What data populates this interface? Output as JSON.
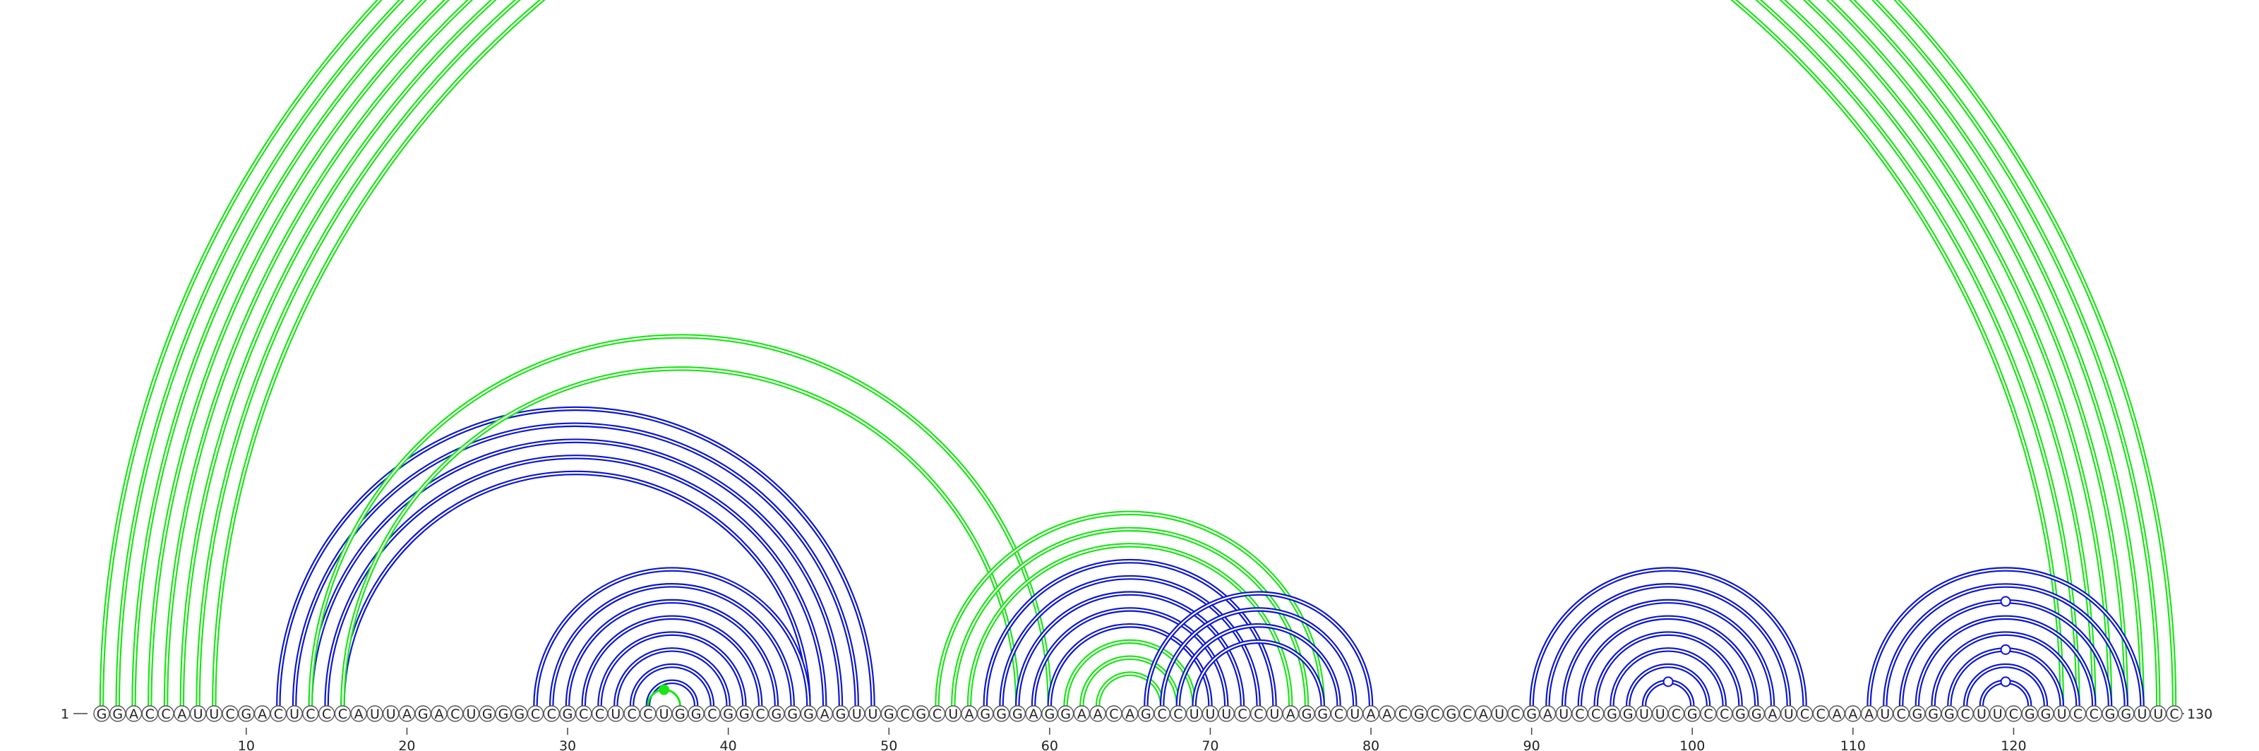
{
  "sequence": "GGACCAUUCGACUCCCAUUAGACUGGGCCGCCUCCUGGCGGCGGGAGUUGCGCUAGGGAGGAACAGCCUUUCCUAGGCUAACGCGCAUCGAUCCGGUUCGCCGGAUCCAAAUCGGGCUUCGGUCCGGUUC",
  "start_label": "1",
  "end_label": "130",
  "tick_labels": [
    "10",
    "20",
    "30",
    "40",
    "50",
    "60",
    "70",
    "80",
    "90",
    "100",
    "110",
    "120"
  ],
  "colors": {
    "primary": "#0a14d2",
    "secondary": "#18e614"
  },
  "arc_groups": [
    {
      "name": "pseudoknot-outer",
      "color": "#18e614",
      "pairs": [
        [
          1,
          130
        ],
        [
          2,
          129
        ],
        [
          3,
          128
        ],
        [
          4,
          127
        ],
        [
          5,
          126
        ],
        [
          6,
          125
        ],
        [
          7,
          124
        ],
        [
          8,
          123
        ]
      ],
      "style": "double"
    },
    {
      "name": "helix-12-49",
      "color": "#0a14d2",
      "pairs": [
        [
          12,
          49
        ],
        [
          13,
          48
        ],
        [
          14,
          47
        ],
        [
          15,
          46
        ],
        [
          16,
          45
        ]
      ],
      "style": "double"
    },
    {
      "name": "pseudoknot-16-60",
      "color": "#18e614",
      "pairs": [
        [
          14,
          60
        ],
        [
          16,
          58
        ]
      ],
      "style": "double"
    },
    {
      "name": "helix-28-45",
      "color": "#0a14d2",
      "pairs": [
        [
          28,
          45
        ],
        [
          29,
          44
        ],
        [
          30,
          43
        ],
        [
          31,
          42
        ],
        [
          32,
          41
        ],
        [
          33,
          40
        ],
        [
          34,
          39
        ],
        [
          35,
          38
        ]
      ],
      "style": "double"
    },
    {
      "name": "loop-35-37",
      "color": "#18e614",
      "pairs": [
        [
          35,
          37
        ]
      ],
      "style": "single"
    },
    {
      "name": "pseudoknot-53-77",
      "color": "#18e614",
      "pairs": [
        [
          53,
          77
        ],
        [
          54,
          76
        ],
        [
          55,
          75
        ]
      ],
      "style": "double"
    },
    {
      "name": "helix-56-74",
      "color": "#0a14d2",
      "pairs": [
        [
          56,
          74
        ],
        [
          57,
          73
        ],
        [
          58,
          72
        ],
        [
          59,
          71
        ],
        [
          60,
          70
        ]
      ],
      "style": "double"
    },
    {
      "name": "helix-61-70-inner",
      "color": "#18e614",
      "pairs": [
        [
          61,
          69
        ],
        [
          62,
          68
        ],
        [
          63,
          67
        ]
      ],
      "style": "double"
    },
    {
      "name": "helix-66-80",
      "color": "#0a14d2",
      "pairs": [
        [
          66,
          80
        ],
        [
          67,
          79
        ],
        [
          68,
          78
        ],
        [
          69,
          77
        ]
      ],
      "style": "double"
    },
    {
      "name": "helix-90-107",
      "color": "#0a14d2",
      "pairs": [
        [
          90,
          107
        ],
        [
          91,
          106
        ],
        [
          92,
          105
        ],
        [
          93,
          104
        ],
        [
          94,
          103
        ],
        [
          95,
          102
        ],
        [
          96,
          101
        ],
        [
          97,
          100
        ]
      ],
      "style": "double"
    },
    {
      "name": "helix-111-128",
      "color": "#0a14d2",
      "pairs": [
        [
          111,
          128
        ],
        [
          112,
          127
        ],
        [
          113,
          126
        ],
        [
          114,
          125
        ],
        [
          115,
          124
        ],
        [
          116,
          123
        ],
        [
          117,
          122
        ],
        [
          118,
          121
        ]
      ],
      "style": "double"
    }
  ],
  "markers": [
    {
      "name": "marker-top",
      "color": "#18e614",
      "position": 65.5,
      "height_pairs": [
        1,
        130
      ],
      "filled": false
    },
    {
      "name": "marker-35",
      "color": "#18e614",
      "position": 36,
      "height_pairs": [
        35,
        37
      ],
      "filled": true
    },
    {
      "name": "marker-99",
      "color": "#0a14d2",
      "position": 98.5,
      "height_pairs": [
        97,
        100
      ],
      "filled": false
    },
    {
      "name": "marker-119a",
      "color": "#0a14d2",
      "position": 119.5,
      "height_pairs": [
        118,
        121
      ],
      "filled": false
    },
    {
      "name": "marker-119b",
      "color": "#0a14d2",
      "position": 119.5,
      "height_pairs": [
        116,
        123
      ],
      "filled": false
    },
    {
      "name": "marker-119c",
      "color": "#0a14d2",
      "position": 119.5,
      "height_pairs": [
        113,
        126
      ],
      "filled": false
    }
  ]
}
